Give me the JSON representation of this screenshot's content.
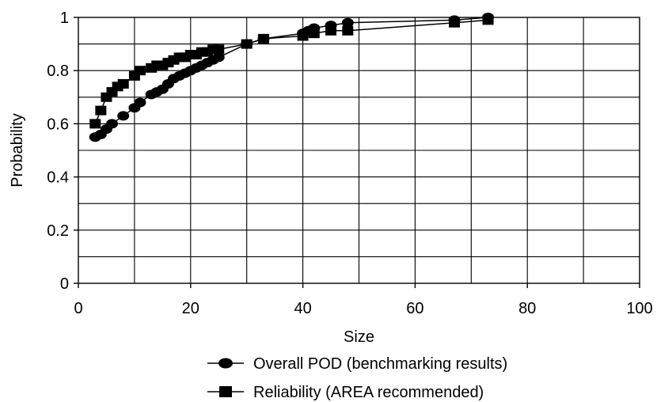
{
  "chart_data": {
    "type": "line",
    "xlabel": "Size",
    "ylabel": "Probability",
    "xlim": [
      0,
      100
    ],
    "ylim": [
      0,
      1
    ],
    "x_ticks": [
      0,
      20,
      40,
      60,
      80,
      100
    ],
    "x_tick_labels": [
      "0",
      "20",
      "40",
      "60",
      "80",
      "100"
    ],
    "y_ticks": [
      0,
      0.2,
      0.4,
      0.6,
      0.8,
      1
    ],
    "y_tick_labels": [
      "0",
      "0.2",
      "0.4",
      "0.6",
      "0.8",
      "1"
    ],
    "grid": true,
    "legend_position": "bottom",
    "series": [
      {
        "name": "Overall POD (benchmarking results)",
        "marker": "circle",
        "color": "#000000",
        "x": [
          3,
          4,
          5,
          6,
          8,
          10,
          11,
          13,
          14,
          15,
          16,
          17,
          18,
          19,
          20,
          21,
          22,
          23,
          24,
          25,
          30,
          33,
          40,
          41,
          42,
          45,
          48,
          67,
          73
        ],
        "y": [
          0.55,
          0.56,
          0.58,
          0.6,
          0.63,
          0.66,
          0.68,
          0.71,
          0.72,
          0.73,
          0.75,
          0.77,
          0.78,
          0.79,
          0.8,
          0.81,
          0.82,
          0.83,
          0.84,
          0.85,
          0.9,
          0.92,
          0.94,
          0.95,
          0.96,
          0.97,
          0.98,
          0.99,
          1.0
        ]
      },
      {
        "name": "Reliability (AREA recommended)",
        "marker": "square",
        "color": "#000000",
        "x": [
          3,
          4,
          5,
          6,
          7,
          8,
          10,
          11,
          13,
          14,
          15,
          16,
          17,
          18,
          19,
          20,
          21,
          22,
          23,
          24,
          25,
          30,
          33,
          40,
          42,
          45,
          48,
          67,
          73
        ],
        "y": [
          0.6,
          0.65,
          0.7,
          0.72,
          0.74,
          0.75,
          0.78,
          0.8,
          0.81,
          0.82,
          0.82,
          0.83,
          0.84,
          0.85,
          0.85,
          0.86,
          0.86,
          0.87,
          0.87,
          0.88,
          0.88,
          0.9,
          0.92,
          0.93,
          0.94,
          0.95,
          0.95,
          0.98,
          0.99
        ]
      }
    ]
  }
}
